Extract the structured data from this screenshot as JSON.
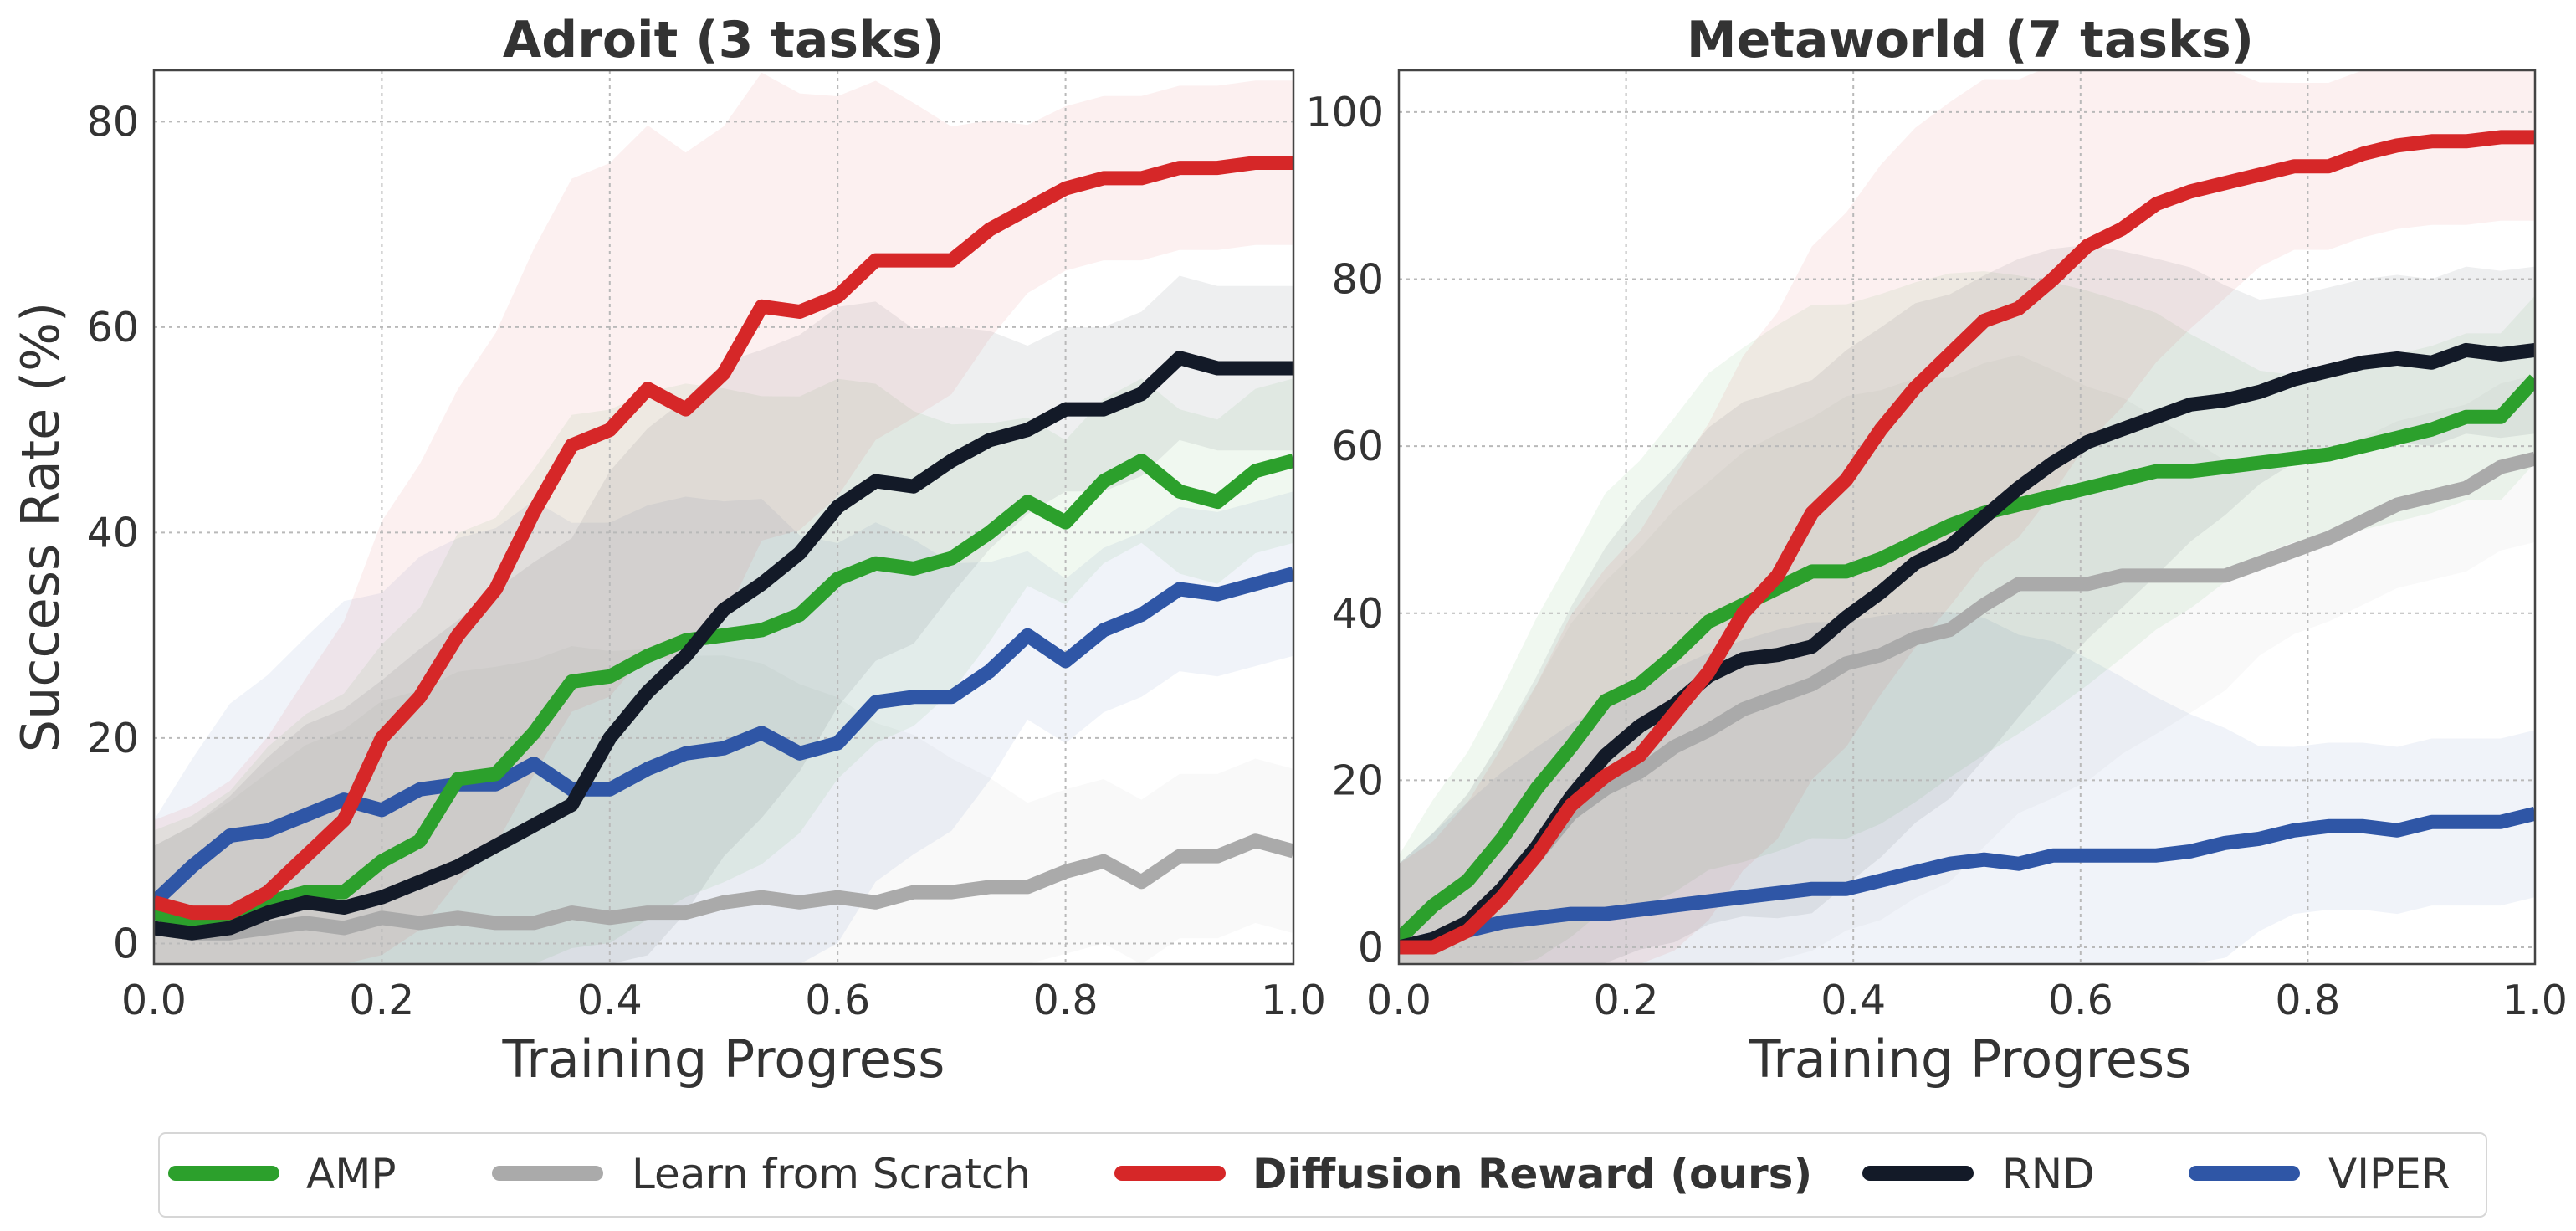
{
  "figure": {
    "ylabel": "Success Rate (%)",
    "legend": {
      "placement": "bottom-center",
      "entries": [
        {
          "key": "amp",
          "label": "AMP",
          "bold": false
        },
        {
          "key": "scratch",
          "label": "Learn from Scratch",
          "bold": false
        },
        {
          "key": "diffusion",
          "label": "Diffusion Reward (ours)",
          "bold": true
        },
        {
          "key": "rnd",
          "label": "RND",
          "bold": false
        },
        {
          "key": "viper",
          "label": "VIPER",
          "bold": false
        }
      ]
    }
  },
  "colors": {
    "amp": "#2ca02c",
    "scratch": "#aaaaaa",
    "diffusion": "#d62728",
    "rnd": "#131a28",
    "viper": "#2f56a6"
  },
  "chart_data": [
    {
      "type": "line",
      "title": "Adroit (3 tasks)",
      "xlabel": "Training Progress",
      "ylabel": "Success Rate (%)",
      "xlim": [
        0,
        1
      ],
      "ylim": [
        -2,
        85
      ],
      "xticks": [
        "0.0",
        "0.2",
        "0.4",
        "0.6",
        "0.8",
        "1.0"
      ],
      "yticks": [
        "0",
        "20",
        "40",
        "60",
        "80"
      ],
      "grid": true,
      "shaded_bands": true,
      "x": [
        0,
        0.0333,
        0.0667,
        0.1,
        0.1333,
        0.1667,
        0.2,
        0.2333,
        0.2667,
        0.3,
        0.3333,
        0.3667,
        0.4,
        0.4333,
        0.4667,
        0.5,
        0.5333,
        0.5667,
        0.6,
        0.6333,
        0.6667,
        0.7,
        0.7333,
        0.7667,
        0.8,
        0.8333,
        0.8667,
        0.9,
        0.9333,
        0.9667,
        1.0
      ],
      "series": [
        {
          "name": "AMP",
          "key": "amp",
          "values": [
            3,
            2,
            2,
            4,
            5,
            5,
            8,
            10,
            16,
            16.5,
            20.5,
            25.5,
            26,
            28,
            29.5,
            30,
            30.5,
            32,
            35.5,
            37,
            36.5,
            37.5,
            40,
            43,
            41,
            45,
            47,
            44,
            43,
            46,
            47
          ]
        },
        {
          "name": "Learn from Scratch",
          "key": "scratch",
          "values": [
            1.5,
            1,
            1,
            1.5,
            2,
            1.5,
            2.5,
            2,
            2.5,
            2,
            2,
            3,
            2.5,
            3,
            3,
            4,
            4.5,
            4,
            4.5,
            4,
            5,
            5,
            5.5,
            5.5,
            7,
            8,
            6,
            8.5,
            8.5,
            10,
            9
          ]
        },
        {
          "name": "Diffusion Reward (ours)",
          "key": "diffusion",
          "values": [
            4,
            3,
            3,
            5,
            8.5,
            12,
            20,
            24,
            30,
            34.5,
            42,
            48.5,
            50,
            54,
            52,
            55.5,
            62,
            61.5,
            63,
            66.5,
            66.5,
            66.5,
            69.5,
            71.5,
            73.5,
            74.5,
            74.5,
            75.5,
            75.5,
            76,
            76
          ]
        },
        {
          "name": "RND",
          "key": "rnd",
          "values": [
            1.5,
            1,
            1.5,
            3,
            4,
            3.5,
            4.5,
            6,
            7.5,
            9.5,
            11.5,
            13.5,
            20,
            24.5,
            28,
            32.5,
            35,
            38,
            42.5,
            45,
            44.5,
            47,
            49,
            50,
            52,
            52,
            53.5,
            57,
            56,
            56,
            56
          ]
        },
        {
          "name": "VIPER",
          "key": "viper",
          "values": [
            4,
            7.5,
            10.5,
            11,
            12.5,
            14,
            13,
            15,
            15.5,
            15.5,
            17.5,
            15,
            15,
            17,
            18.5,
            19,
            20.5,
            18.5,
            19.5,
            23.5,
            24,
            24,
            26.5,
            30,
            27.5,
            30.5,
            32,
            34.5,
            34,
            35,
            36
          ]
        }
      ]
    },
    {
      "type": "line",
      "title": "Metaworld (7 tasks)",
      "xlabel": "Training Progress",
      "xlim": [
        0,
        1
      ],
      "ylim": [
        -2,
        105
      ],
      "xticks": [
        "0.0",
        "0.2",
        "0.4",
        "0.6",
        "0.8",
        "1.0"
      ],
      "yticks": [
        "0",
        "20",
        "40",
        "60",
        "80",
        "100"
      ],
      "grid": true,
      "shaded_bands": true,
      "x": [
        0,
        0.0303,
        0.0606,
        0.0909,
        0.1212,
        0.1515,
        0.1818,
        0.2121,
        0.2424,
        0.2727,
        0.303,
        0.3333,
        0.3636,
        0.3939,
        0.4242,
        0.4545,
        0.4848,
        0.5152,
        0.5455,
        0.5758,
        0.6061,
        0.6364,
        0.6667,
        0.697,
        0.7273,
        0.7576,
        0.7879,
        0.8182,
        0.8485,
        0.8788,
        0.9091,
        0.9394,
        0.9697,
        1.0
      ],
      "series": [
        {
          "name": "AMP",
          "key": "amp",
          "values": [
            1,
            5,
            8,
            13,
            19,
            24,
            29.5,
            31.5,
            35,
            39,
            41,
            43,
            45,
            45,
            46.5,
            48.5,
            50.5,
            52,
            53,
            54,
            55,
            56,
            57,
            57,
            57.5,
            58,
            58.5,
            59,
            60,
            61,
            62,
            63.5,
            63.5,
            68
          ]
        },
        {
          "name": "Learn from Scratch",
          "key": "scratch",
          "values": [
            0,
            1,
            3,
            7,
            11,
            16,
            19,
            21,
            24,
            26,
            28.5,
            30,
            31.5,
            34,
            35,
            37,
            38,
            41,
            43.5,
            43.5,
            43.5,
            44.5,
            44.5,
            44.5,
            44.5,
            46,
            47.5,
            49,
            51,
            53,
            54,
            55,
            57.5,
            58.5
          ]
        },
        {
          "name": "Diffusion Reward (ours)",
          "key": "diffusion",
          "values": [
            0,
            0,
            2,
            6,
            11,
            17,
            20.5,
            23,
            28,
            33,
            40,
            44.5,
            52,
            56,
            62,
            67,
            71,
            75,
            76.5,
            80,
            84,
            86,
            89,
            90.5,
            91.5,
            92.5,
            93.5,
            93.5,
            95,
            96,
            96.5,
            96.5,
            97,
            97
          ]
        },
        {
          "name": "RND",
          "key": "rnd",
          "values": [
            0,
            1,
            3,
            7,
            12,
            18,
            23,
            26.5,
            29,
            32.5,
            34.5,
            35,
            36,
            39.5,
            42.5,
            46,
            48,
            51.5,
            55,
            58,
            60.5,
            62,
            63.5,
            65,
            65.5,
            66.5,
            68,
            69,
            70,
            70.5,
            70,
            71.5,
            71,
            71.5
          ]
        },
        {
          "name": "VIPER",
          "key": "viper",
          "values": [
            0,
            1,
            2,
            3,
            3.5,
            4,
            4,
            4.5,
            5,
            5.5,
            6,
            6.5,
            7,
            7,
            8,
            9,
            10,
            10.5,
            10,
            11,
            11,
            11,
            11,
            11.5,
            12.5,
            13,
            14,
            14.5,
            14.5,
            14,
            15,
            15,
            15,
            16
          ]
        }
      ]
    }
  ]
}
